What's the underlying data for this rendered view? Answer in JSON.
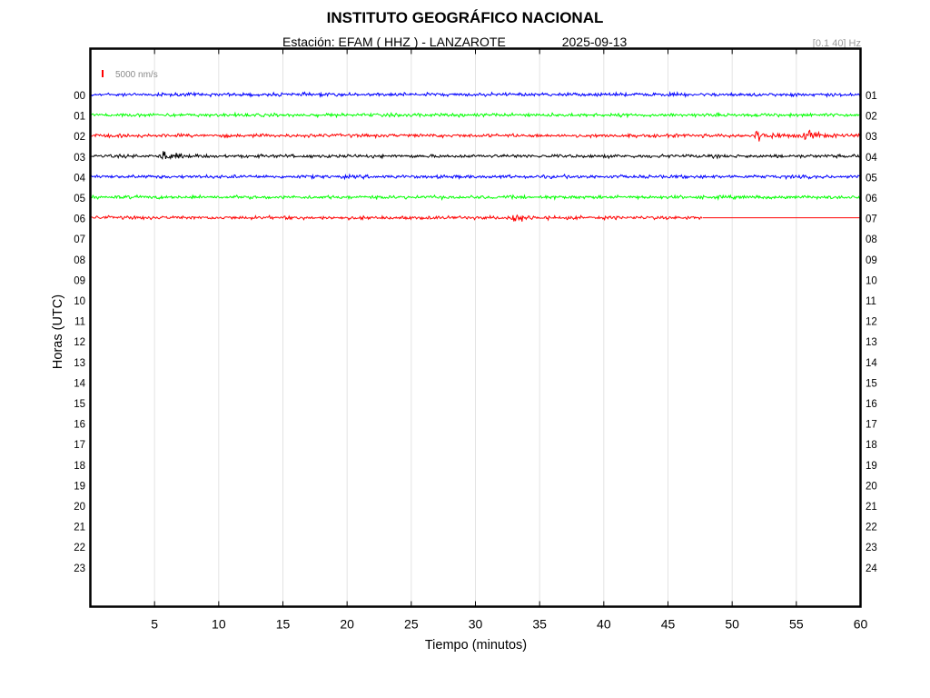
{
  "header": {
    "title": "INSTITUTO GEOGRÁFICO NACIONAL",
    "station_prefix": "Estación:",
    "station": "EFAM ( HHZ ) - LANZAROTE",
    "date": "2025-09-13",
    "filter": "[0.1 40] Hz"
  },
  "chart_data": {
    "type": "line",
    "title": "INSTITUTO GEOGRÁFICO NACIONAL",
    "xlabel": "Tiempo (minutos)",
    "ylabel": "Horas (UTC)",
    "xlim": [
      0,
      60
    ],
    "x_ticks": [
      5,
      10,
      15,
      20,
      25,
      30,
      35,
      40,
      45,
      50,
      55,
      60
    ],
    "left_hour_labels": [
      "00",
      "01",
      "02",
      "03",
      "04",
      "05",
      "06",
      "07",
      "08",
      "09",
      "10",
      "11",
      "12",
      "13",
      "14",
      "15",
      "16",
      "17",
      "18",
      "19",
      "20",
      "21",
      "22",
      "23"
    ],
    "right_hour_labels": [
      "01",
      "02",
      "03",
      "04",
      "05",
      "06",
      "07",
      "08",
      "09",
      "10",
      "11",
      "12",
      "13",
      "14",
      "15",
      "16",
      "17",
      "18",
      "19",
      "20",
      "21",
      "22",
      "23",
      "24"
    ],
    "grid": true,
    "scale_bar": {
      "label": "5000 nm/s",
      "color": "#ff0000"
    },
    "series": [
      {
        "hour": "00",
        "color": "#0000ff",
        "end_minute": 60,
        "events": []
      },
      {
        "hour": "01",
        "color": "#00ff00",
        "end_minute": 60,
        "events": []
      },
      {
        "hour": "02",
        "color": "#ff0000",
        "end_minute": 60,
        "events": [
          {
            "minute": 51.8,
            "amplitude": 1.6
          },
          {
            "minute": 55.5,
            "amplitude": 1.3
          }
        ]
      },
      {
        "hour": "03",
        "color": "#000000",
        "end_minute": 60,
        "events": [
          {
            "minute": 5.5,
            "amplitude": 1.3
          }
        ]
      },
      {
        "hour": "04",
        "color": "#0000ff",
        "end_minute": 60,
        "events": []
      },
      {
        "hour": "05",
        "color": "#00ff00",
        "end_minute": 60,
        "events": []
      },
      {
        "hour": "06",
        "color": "#ff0000",
        "end_minute": 47.7,
        "flat_to": 60,
        "events": [
          {
            "minute": 32.8,
            "amplitude": 1.1
          }
        ]
      }
    ]
  }
}
